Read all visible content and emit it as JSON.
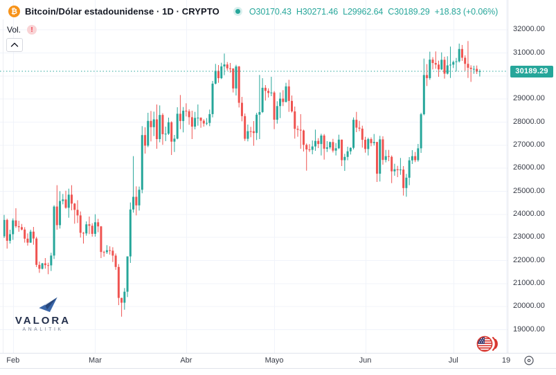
{
  "header": {
    "symbol_title": "Bitcoin/Dólar estadounidense · 1D · CRYPTO",
    "btc_glyph": "₿",
    "ohlc": {
      "open": "O30170.43",
      "high": "H30271.46",
      "low": "L29962.64",
      "close": "C30189.29",
      "change": "+18.83 (+0.06%)"
    },
    "volume_label": "Vol.",
    "warning_mark": "!"
  },
  "watermark": {
    "brand": "VALORA",
    "sub": "ANALITIK"
  },
  "price_axis": {
    "last_price_label": "30189.29",
    "labels": [
      {
        "text": "32000.00",
        "value": 32000
      },
      {
        "text": "31000.00",
        "value": 31000
      },
      {
        "text": "30000.00",
        "value": 30000
      },
      {
        "text": "29000.00",
        "value": 29000
      },
      {
        "text": "28000.00",
        "value": 28000
      },
      {
        "text": "27000.00",
        "value": 27000
      },
      {
        "text": "26000.00",
        "value": 26000
      },
      {
        "text": "25000.00",
        "value": 25000
      },
      {
        "text": "24000.00",
        "value": 24000
      },
      {
        "text": "23000.00",
        "value": 23000
      },
      {
        "text": "22000.00",
        "value": 22000
      },
      {
        "text": "21000.00",
        "value": 21000
      },
      {
        "text": "20000.00",
        "value": 20000
      },
      {
        "text": "19000.00",
        "value": 19000
      }
    ]
  },
  "time_axis": {
    "labels": [
      {
        "text": "Feb",
        "i": 3
      },
      {
        "text": "Mar",
        "i": 31
      },
      {
        "text": "Abr",
        "i": 62
      },
      {
        "text": "Mayo",
        "i": 92
      },
      {
        "text": "Jun",
        "i": 123
      },
      {
        "text": "Jul",
        "i": 153
      },
      {
        "text": "19",
        "i": 171
      }
    ]
  },
  "colors": {
    "up": "#26a69a",
    "down": "#ef5350",
    "grid": "#f0f3fa",
    "axis_border": "#e0e3eb",
    "badge_bg": "#26a69a",
    "accent_text": "#26a69a",
    "title_text": "#131722",
    "label_text": "#363a45",
    "warning_red": "#f23645",
    "btc_orange": "#f7931a",
    "brand_navy": "#232f4b"
  },
  "chart_data": {
    "type": "candlestick",
    "title": "Bitcoin/Dólar estadounidense",
    "exchange": "CRYPTO",
    "interval": "1D",
    "start_date": "2023-01-29",
    "last_ohlc": {
      "open": 30170.43,
      "high": 30271.46,
      "low": 29962.64,
      "close": 30189.29,
      "change": 18.83,
      "change_pct": 0.06
    },
    "ylim": [
      17980,
      33280
    ],
    "y_ticks": [
      32000,
      31000,
      30000,
      29000,
      28000,
      27000,
      26000,
      25000,
      24000,
      23000,
      22000,
      21000,
      20000,
      19000
    ],
    "grid": true,
    "candles": [
      [
        23032,
        23960,
        22960,
        23744
      ],
      [
        23744,
        23800,
        22500,
        22840
      ],
      [
        22840,
        23320,
        22720,
        23125
      ],
      [
        23125,
        23810,
        22880,
        23723
      ],
      [
        23723,
        24250,
        23400,
        23471
      ],
      [
        23471,
        23710,
        23230,
        23431
      ],
      [
        23431,
        23570,
        23290,
        23327
      ],
      [
        23327,
        23430,
        22760,
        22932
      ],
      [
        22932,
        23160,
        22630,
        22760
      ],
      [
        22760,
        23320,
        22750,
        23236
      ],
      [
        23236,
        23440,
        22670,
        22939
      ],
      [
        22939,
        23010,
        21700,
        21796
      ],
      [
        21796,
        21940,
        21450,
        21625
      ],
      [
        21625,
        21880,
        21600,
        21862
      ],
      [
        21862,
        22090,
        21630,
        21783
      ],
      [
        21783,
        21890,
        21390,
        21774
      ],
      [
        21774,
        22320,
        21530,
        22199
      ],
      [
        22199,
        24380,
        22050,
        24324
      ],
      [
        24324,
        25250,
        23320,
        23517
      ],
      [
        23517,
        24990,
        23370,
        24565
      ],
      [
        24565,
        24870,
        24420,
        24632
      ],
      [
        24632,
        25010,
        24230,
        24271
      ],
      [
        24271,
        25100,
        23840,
        24840
      ],
      [
        24840,
        25250,
        24160,
        24452
      ],
      [
        24452,
        24480,
        23580,
        24182
      ],
      [
        24182,
        24600,
        23610,
        23940
      ],
      [
        23940,
        24110,
        22980,
        23186
      ],
      [
        23186,
        23220,
        22720,
        23159
      ],
      [
        23159,
        23680,
        23060,
        23553
      ],
      [
        23553,
        23890,
        23130,
        23492
      ],
      [
        23492,
        23600,
        23020,
        23141
      ],
      [
        23141,
        23990,
        23020,
        23642
      ],
      [
        23642,
        23790,
        23210,
        23464
      ],
      [
        23464,
        23480,
        22090,
        22354
      ],
      [
        22354,
        22410,
        22150,
        22346
      ],
      [
        22346,
        22650,
        22270,
        22430
      ],
      [
        22430,
        22600,
        22240,
        22410
      ],
      [
        22410,
        22560,
        21920,
        22197
      ],
      [
        22197,
        22290,
        21580,
        21705
      ],
      [
        21705,
        21830,
        20050,
        20363
      ],
      [
        20363,
        20370,
        19549,
        20155
      ],
      [
        20155,
        20790,
        19850,
        20632
      ],
      [
        20632,
        22160,
        20400,
        22163
      ],
      [
        22163,
        24500,
        21880,
        24197
      ],
      [
        24197,
        26510,
        24060,
        24746
      ],
      [
        24746,
        25200,
        23940,
        24375
      ],
      [
        24375,
        25190,
        24150,
        25052
      ],
      [
        25052,
        27810,
        24900,
        27423
      ],
      [
        27423,
        27760,
        26620,
        26965
      ],
      [
        26965,
        28390,
        26900,
        28038
      ],
      [
        28038,
        28470,
        27150,
        27767
      ],
      [
        27767,
        28440,
        27380,
        28105
      ],
      [
        28105,
        28750,
        26830,
        27250
      ],
      [
        27250,
        28710,
        27110,
        28295
      ],
      [
        28295,
        28370,
        27000,
        27462
      ],
      [
        27462,
        27790,
        27160,
        27482
      ],
      [
        27482,
        28180,
        27430,
        27978
      ],
      [
        27978,
        28020,
        26560,
        27139
      ],
      [
        27139,
        27430,
        26690,
        27268
      ],
      [
        27268,
        28630,
        27240,
        28348
      ],
      [
        28348,
        29160,
        27680,
        28033
      ],
      [
        28033,
        28640,
        27540,
        28478
      ],
      [
        28478,
        28800,
        28230,
        28456
      ],
      [
        28456,
        28540,
        27870,
        28199
      ],
      [
        28199,
        28480,
        27250,
        27790
      ],
      [
        27790,
        28430,
        27670,
        28168
      ],
      [
        28168,
        28750,
        27830,
        28177
      ],
      [
        28177,
        28190,
        27740,
        28044
      ],
      [
        28044,
        28110,
        27790,
        27925
      ],
      [
        27925,
        28160,
        27850,
        27949
      ],
      [
        27949,
        28530,
        27810,
        28333
      ],
      [
        28333,
        29770,
        28190,
        29653
      ],
      [
        29653,
        30510,
        29620,
        30210
      ],
      [
        30210,
        30460,
        29690,
        29891
      ],
      [
        29891,
        30560,
        29850,
        30400
      ],
      [
        30400,
        30960,
        30020,
        30485
      ],
      [
        30485,
        30590,
        30220,
        30318
      ],
      [
        30318,
        30550,
        30130,
        30311
      ],
      [
        30311,
        30320,
        29270,
        29445
      ],
      [
        29445,
        30470,
        29140,
        30397
      ],
      [
        30397,
        30420,
        28620,
        28823
      ],
      [
        28823,
        29080,
        28020,
        28245
      ],
      [
        28245,
        28360,
        27170,
        27262
      ],
      [
        27262,
        27880,
        27150,
        27591
      ],
      [
        27591,
        27780,
        27330,
        27590
      ],
      [
        27590,
        28030,
        26960,
        27513
      ],
      [
        27513,
        28390,
        27210,
        28307
      ],
      [
        28307,
        30030,
        27250,
        28422
      ],
      [
        28422,
        29890,
        28380,
        29473
      ],
      [
        29473,
        29590,
        28920,
        29340
      ],
      [
        29340,
        29450,
        29050,
        29248
      ],
      [
        29248,
        29950,
        29110,
        29268
      ],
      [
        29268,
        29330,
        27680,
        28091
      ],
      [
        28091,
        28890,
        27920,
        28680
      ],
      [
        28680,
        29270,
        28160,
        29006
      ],
      [
        29006,
        29370,
        28680,
        28858
      ],
      [
        28858,
        29690,
        28840,
        29534
      ],
      [
        29534,
        29820,
        28430,
        28904
      ],
      [
        28904,
        29140,
        28400,
        28450
      ],
      [
        28450,
        28660,
        27270,
        27694
      ],
      [
        27694,
        27830,
        27350,
        27654
      ],
      [
        27654,
        28330,
        26830,
        27621
      ],
      [
        27621,
        27660,
        26710,
        27000
      ],
      [
        27000,
        27060,
        25880,
        26800
      ],
      [
        26800,
        27030,
        26690,
        26784
      ],
      [
        26784,
        27190,
        26590,
        26930
      ],
      [
        26930,
        27660,
        26740,
        27170
      ],
      [
        27170,
        27290,
        26860,
        27036
      ],
      [
        27036,
        27480,
        26540,
        27403
      ],
      [
        27403,
        27470,
        26360,
        26832
      ],
      [
        26832,
        27160,
        26690,
        26890
      ],
      [
        26890,
        27140,
        26810,
        27120
      ],
      [
        27120,
        27260,
        26670,
        26750
      ],
      [
        26750,
        27080,
        26540,
        26852
      ],
      [
        26852,
        27440,
        26810,
        27225
      ],
      [
        27225,
        27230,
        26080,
        26334
      ],
      [
        26334,
        26610,
        25870,
        26476
      ],
      [
        26476,
        26920,
        26330,
        26719
      ],
      [
        26719,
        26890,
        26580,
        26871
      ],
      [
        26871,
        28190,
        26800,
        28085
      ],
      [
        28085,
        28430,
        27550,
        27745
      ],
      [
        27745,
        28040,
        27590,
        27702
      ],
      [
        27702,
        27830,
        26880,
        27219
      ],
      [
        27219,
        27350,
        26660,
        26819
      ],
      [
        26819,
        27310,
        26540,
        27249
      ],
      [
        27249,
        27320,
        26940,
        27075
      ],
      [
        27075,
        27470,
        26970,
        27124
      ],
      [
        27124,
        27130,
        25390,
        25749
      ],
      [
        25749,
        27390,
        25410,
        27238
      ],
      [
        27238,
        27370,
        26140,
        26345
      ],
      [
        26345,
        26780,
        26240,
        26508
      ],
      [
        26508,
        26780,
        26290,
        26480
      ],
      [
        26480,
        26540,
        25340,
        25851
      ],
      [
        25851,
        26180,
        25660,
        25940
      ],
      [
        25940,
        26090,
        25600,
        25902
      ],
      [
        25902,
        26430,
        25700,
        25928
      ],
      [
        25928,
        26080,
        24800,
        25126
      ],
      [
        25126,
        25740,
        24750,
        25575
      ],
      [
        25575,
        26470,
        25250,
        26327
      ],
      [
        26327,
        26770,
        26170,
        26510
      ],
      [
        26510,
        26690,
        26250,
        26336
      ],
      [
        26336,
        27040,
        26270,
        26849
      ],
      [
        26849,
        28390,
        26650,
        28327
      ],
      [
        28327,
        30740,
        28280,
        30027
      ],
      [
        30027,
        30500,
        29550,
        29893
      ],
      [
        29893,
        31040,
        29820,
        30695
      ],
      [
        30695,
        30800,
        30270,
        30548
      ],
      [
        30548,
        31050,
        30300,
        30480
      ],
      [
        30480,
        30650,
        29950,
        30271
      ],
      [
        30271,
        31010,
        30240,
        30688
      ],
      [
        30688,
        30820,
        29870,
        30086
      ],
      [
        30086,
        30840,
        30050,
        30445
      ],
      [
        30445,
        31260,
        29900,
        30477
      ],
      [
        30477,
        30650,
        30330,
        30590
      ],
      [
        30590,
        30770,
        30180,
        30620
      ],
      [
        30620,
        31390,
        30570,
        31156
      ],
      [
        31156,
        31330,
        30640,
        30777
      ],
      [
        30777,
        30880,
        30210,
        30512
      ],
      [
        30512,
        31500,
        29900,
        30342
      ],
      [
        30342,
        30450,
        29730,
        30290
      ],
      [
        30290,
        30430,
        30080,
        30293
      ],
      [
        30293,
        30440,
        30070,
        30171
      ],
      [
        30170.43,
        30271.46,
        29962.64,
        30189.29
      ]
    ]
  }
}
